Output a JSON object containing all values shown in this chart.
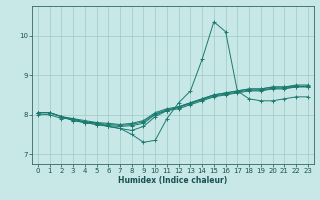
{
  "title": "",
  "xlabel": "Humidex (Indice chaleur)",
  "background_color": "#c8e8e8",
  "line_color": "#1a7a6e",
  "grid_color": "#a0c8c8",
  "xlim": [
    -0.5,
    23.5
  ],
  "ylim": [
    6.75,
    10.75
  ],
  "yticks": [
    7,
    8,
    9,
    10
  ],
  "xticks": [
    0,
    1,
    2,
    3,
    4,
    5,
    6,
    7,
    8,
    9,
    10,
    11,
    12,
    13,
    14,
    15,
    16,
    17,
    18,
    19,
    20,
    21,
    22,
    23
  ],
  "series": [
    {
      "x": [
        0,
        1,
        2,
        3,
        4,
        5,
        6,
        7,
        8,
        9,
        10,
        11,
        12,
        13,
        14,
        15,
        16,
        17,
        18,
        19,
        20,
        21,
        22,
        23
      ],
      "y": [
        8.0,
        8.0,
        7.9,
        7.9,
        7.8,
        7.8,
        7.7,
        7.65,
        7.5,
        7.3,
        7.35,
        7.9,
        8.3,
        8.6,
        9.4,
        10.35,
        10.1,
        8.6,
        8.4,
        8.35,
        8.35,
        8.4,
        8.45,
        8.45
      ]
    },
    {
      "x": [
        0,
        1,
        2,
        3,
        4,
        5,
        6,
        7,
        8,
        9,
        10,
        11,
        12,
        13,
        14,
        15,
        16,
        17,
        18,
        19,
        20,
        21,
        22,
        23
      ],
      "y": [
        8.05,
        8.05,
        7.95,
        7.85,
        7.8,
        7.75,
        7.7,
        7.65,
        7.6,
        7.7,
        7.95,
        8.1,
        8.2,
        8.3,
        8.4,
        8.5,
        8.55,
        8.6,
        8.65,
        8.65,
        8.7,
        8.7,
        8.75,
        8.75
      ]
    },
    {
      "x": [
        0,
        1,
        2,
        3,
        4,
        5,
        6,
        7,
        8,
        9,
        10,
        11,
        12,
        13,
        14,
        15,
        16,
        17,
        18,
        19,
        20,
        21,
        22,
        23
      ],
      "y": [
        8.05,
        8.05,
        7.95,
        7.85,
        7.8,
        7.75,
        7.72,
        7.7,
        7.72,
        7.78,
        8.0,
        8.1,
        8.15,
        8.25,
        8.35,
        8.45,
        8.5,
        8.55,
        8.6,
        8.6,
        8.65,
        8.65,
        8.7,
        8.7
      ]
    },
    {
      "x": [
        0,
        1,
        2,
        3,
        4,
        5,
        6,
        7,
        8,
        9,
        10,
        11,
        12,
        13,
        14,
        15,
        16,
        17,
        18,
        19,
        20,
        21,
        22,
        23
      ],
      "y": [
        8.05,
        8.05,
        7.95,
        7.9,
        7.85,
        7.8,
        7.78,
        7.75,
        7.78,
        7.85,
        8.05,
        8.15,
        8.2,
        8.3,
        8.4,
        8.5,
        8.55,
        8.6,
        8.65,
        8.65,
        8.7,
        8.7,
        8.72,
        8.72
      ]
    },
    {
      "x": [
        0,
        1,
        2,
        3,
        4,
        5,
        6,
        7,
        8,
        9,
        10,
        11,
        12,
        13,
        14,
        15,
        16,
        17,
        18,
        19,
        20,
        21,
        22,
        23
      ],
      "y": [
        8.05,
        8.05,
        7.95,
        7.88,
        7.82,
        7.78,
        7.75,
        7.73,
        7.75,
        7.82,
        8.02,
        8.12,
        8.18,
        8.28,
        8.38,
        8.47,
        8.52,
        8.57,
        8.62,
        8.62,
        8.67,
        8.67,
        8.71,
        8.71
      ]
    }
  ]
}
